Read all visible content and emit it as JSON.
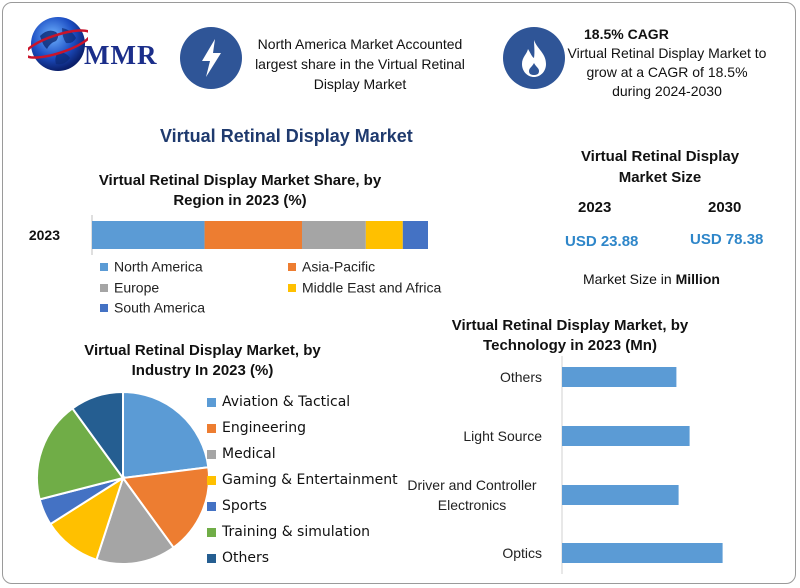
{
  "header": {
    "logo_text": "MMR",
    "box1_text": "North America Market Accounted largest share in the Virtual Retinal Display Market",
    "box2_title": "18.5% CAGR",
    "box2_text": "Virtual Retinal Display Market to grow at a CAGR of 18.5% during 2024-2030",
    "box1_icon": "lightning-icon",
    "box2_icon": "flame-icon"
  },
  "main_title": "Virtual Retinal Display Market",
  "market_size": {
    "title": "Virtual Retinal Display Market Size",
    "year1": "2023",
    "year2": "2030",
    "value1": "USD 23.88",
    "value2": "USD 78.38",
    "note_prefix": "Market Size in",
    "note_unit": "Million"
  },
  "chart_data": [
    {
      "type": "bar",
      "orientation": "stacked-horizontal",
      "title": "Virtual Retinal Display Market Share, by Region in 2023 (%)",
      "categories": [
        "2023"
      ],
      "series": [
        {
          "name": "North America",
          "values": [
            33.5
          ],
          "color": "#5b9bd5"
        },
        {
          "name": "Asia-Pacific",
          "values": [
            29
          ],
          "color": "#ed7d31"
        },
        {
          "name": "Europe",
          "values": [
            19
          ],
          "color": "#a5a5a5"
        },
        {
          "name": "Middle East and Africa",
          "values": [
            11
          ],
          "color": "#ffc000"
        },
        {
          "name": "South America",
          "values": [
            7.5
          ],
          "color": "#4472c4"
        }
      ]
    },
    {
      "type": "pie",
      "title": "Virtual Retinal Display Market, by Industry In 2023 (%)",
      "categories": [
        "Aviation & Tactical",
        "Engineering",
        "Medical",
        "Gaming & Entertainment",
        "Sports",
        "Training & simulation",
        "Others"
      ],
      "values": [
        23,
        17,
        15,
        11,
        5,
        19,
        10
      ],
      "colors": [
        "#5b9bd5",
        "#ed7d31",
        "#a5a5a5",
        "#ffc000",
        "#4472c4",
        "#70ad47",
        "#255e91"
      ]
    },
    {
      "type": "bar",
      "orientation": "horizontal",
      "title": "Virtual Retinal Display Market, by Technology in 2023 (Mn)",
      "categories": [
        "Others",
        "Light Source",
        "Driver and Controller Electronics",
        "Optics"
      ],
      "values": [
        5.2,
        5.8,
        5.3,
        7.3
      ],
      "xlim": [
        0,
        10
      ],
      "color": "#5b9bd5"
    }
  ]
}
